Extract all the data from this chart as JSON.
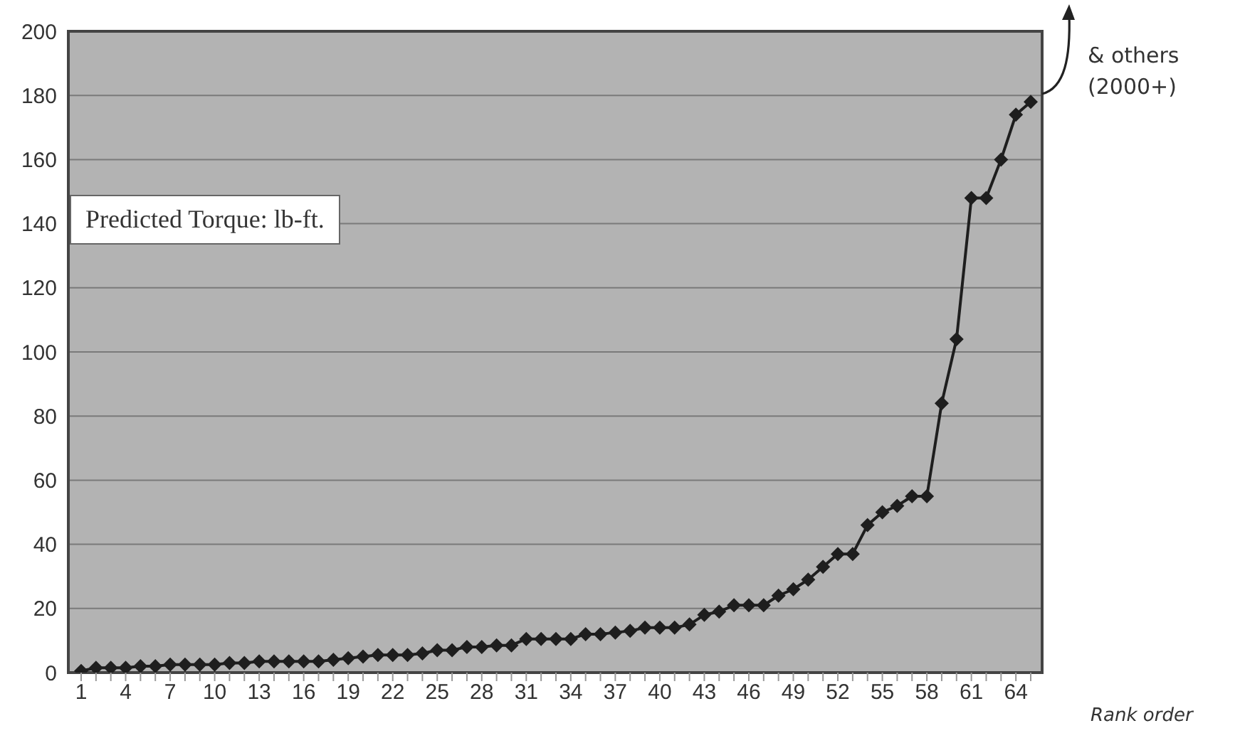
{
  "chart_data": {
    "type": "line",
    "xlabel": "Rank order",
    "ylabel": "Predicted Torque: lb-ft.",
    "annotations": [
      "& others (2000+)"
    ],
    "categories": [
      "1",
      null,
      null,
      "4",
      null,
      null,
      "7",
      null,
      null,
      "10",
      null,
      null,
      "13",
      null,
      null,
      "16",
      null,
      null,
      "19",
      null,
      null,
      "22",
      null,
      null,
      "25",
      null,
      null,
      "28",
      null,
      null,
      "31",
      null,
      null,
      "34",
      null,
      null,
      "37",
      null,
      null,
      "40",
      null,
      null,
      "43",
      null,
      null,
      "46",
      null,
      null,
      "49",
      null,
      null,
      "52",
      null,
      null,
      "55",
      null,
      null,
      "58",
      null,
      null,
      "61",
      null,
      null,
      "64",
      null
    ],
    "values": [
      0.5,
      1.5,
      1.5,
      1.5,
      2,
      2,
      2.5,
      2.5,
      2.5,
      2.5,
      3,
      3,
      3.5,
      3.5,
      3.5,
      3.5,
      3.5,
      4,
      4.5,
      5,
      5.5,
      5.5,
      5.5,
      6,
      7,
      7,
      8,
      8,
      8.5,
      8.5,
      10.5,
      10.5,
      10.5,
      10.5,
      12,
      12,
      12.5,
      13,
      14,
      14,
      14,
      15,
      18,
      19,
      21,
      21,
      21,
      24,
      26,
      29,
      33,
      37,
      37,
      46,
      50,
      52,
      55,
      55,
      84,
      104,
      148,
      148,
      160,
      174,
      178
    ],
    "color": "#1e1e1e",
    "marker": "diamond",
    "line_style": "solid",
    "ylim": [
      0,
      200
    ],
    "yticks": [
      0,
      20,
      40,
      60,
      80,
      100,
      120,
      140,
      160,
      180,
      200
    ],
    "grid": "y",
    "legend": false
  }
}
